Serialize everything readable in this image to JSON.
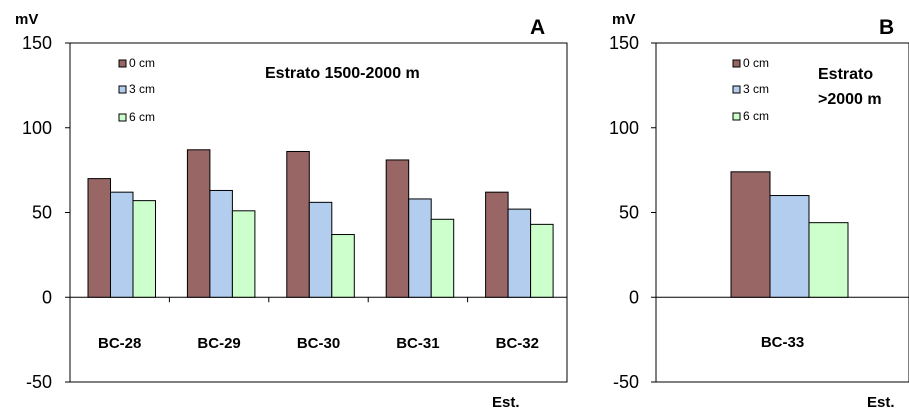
{
  "chart_data": [
    {
      "type": "bar",
      "panel": "A",
      "ylabel": "mV",
      "xlabel": "Est.",
      "annotation": "Estrato 1500-2000 m",
      "ylim": [
        -50,
        150
      ],
      "yticks": [
        "150",
        "100",
        "50",
        "0",
        "-50"
      ],
      "categories": [
        "BC-28",
        "BC-29",
        "BC-30",
        "BC-31",
        "BC-32"
      ],
      "series": [
        {
          "name": "0 cm",
          "color": "#996666",
          "values": [
            70,
            87,
            86,
            81,
            62
          ]
        },
        {
          "name": "3 cm",
          "color": "#b3cdef",
          "values": [
            62,
            63,
            56,
            58,
            52
          ]
        },
        {
          "name": "6 cm",
          "color": "#ccffcc",
          "values": [
            57,
            51,
            37,
            46,
            43
          ]
        }
      ],
      "legend": "top-left"
    },
    {
      "type": "bar",
      "panel": "B",
      "ylabel": "mV",
      "xlabel": "Est.",
      "annotation": [
        "Estrato",
        ">2000 m"
      ],
      "ylim": [
        -50,
        150
      ],
      "yticks": [
        "150",
        "100",
        "50",
        "0",
        "-50"
      ],
      "categories": [
        "BC-33"
      ],
      "series": [
        {
          "name": "0 cm",
          "color": "#996666",
          "values": [
            74
          ]
        },
        {
          "name": "3 cm",
          "color": "#b3cdef",
          "values": [
            60
          ]
        },
        {
          "name": "6 cm",
          "color": "#ccffcc",
          "values": [
            44
          ]
        }
      ],
      "legend": "top-left"
    }
  ]
}
